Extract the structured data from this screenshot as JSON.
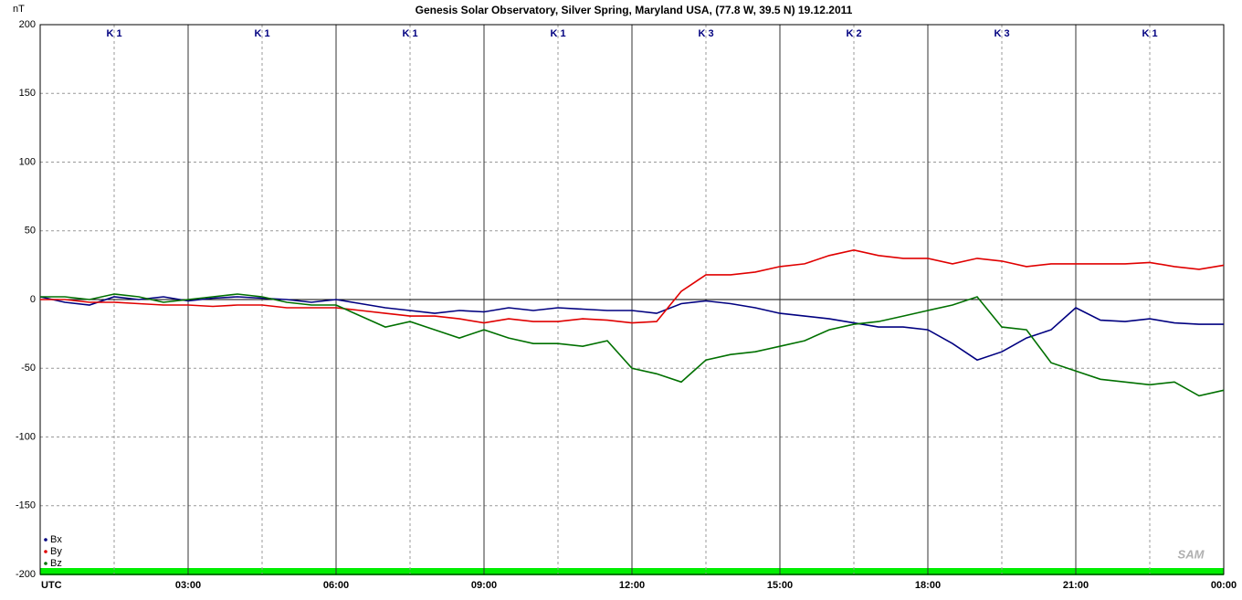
{
  "chart_data": {
    "type": "line",
    "title": "Genesis Solar Observatory, Silver Spring, Maryland USA, (77.8 W, 39.5 N)  19.12.2011",
    "y_label": "nT",
    "logo": "SAM",
    "k_labels": [
      "K 1",
      "K 1",
      "K 1",
      "K 1",
      "K 3",
      "K 2",
      "K 3",
      "K 1"
    ],
    "x": [
      0,
      0.5,
      1,
      1.5,
      2,
      2.5,
      3,
      3.5,
      4,
      4.5,
      5,
      5.5,
      6,
      6.5,
      7,
      7.5,
      8,
      8.5,
      9,
      9.5,
      10,
      10.5,
      11,
      11.5,
      12,
      12.5,
      13,
      13.5,
      14,
      14.5,
      15,
      15.5,
      16,
      16.5,
      17,
      17.5,
      18,
      18.5,
      19,
      19.5,
      20,
      20.5,
      21,
      21.5,
      22,
      22.5,
      23,
      23.5,
      24
    ],
    "series": [
      {
        "name": "Bx",
        "color": "#000080",
        "values": [
          2,
          -2,
          -4,
          2,
          0,
          2,
          -1,
          1,
          2,
          1,
          0,
          -2,
          0,
          -3,
          -6,
          -8,
          -10,
          -8,
          -9,
          -6,
          -8,
          -6,
          -7,
          -8,
          -8,
          -10,
          -3,
          -1,
          -3,
          -6,
          -10,
          -12,
          -14,
          -17,
          -20,
          -20,
          -22,
          -32,
          -44,
          -38,
          -28,
          -22,
          -6,
          -15,
          -16,
          -14,
          -17,
          -18,
          -18
        ]
      },
      {
        "name": "By",
        "color": "#e00000",
        "values": [
          0,
          0,
          -2,
          -2,
          -3,
          -4,
          -4,
          -5,
          -4,
          -4,
          -6,
          -6,
          -6,
          -8,
          -10,
          -12,
          -12,
          -14,
          -17,
          -14,
          -16,
          -16,
          -14,
          -15,
          -17,
          -16,
          6,
          18,
          18,
          20,
          24,
          26,
          32,
          36,
          32,
          30,
          30,
          26,
          30,
          28,
          24,
          26,
          26,
          26,
          26,
          27,
          24,
          22,
          25
        ]
      },
      {
        "name": "Bz",
        "color": "#007000",
        "values": [
          2,
          2,
          0,
          4,
          2,
          -2,
          0,
          2,
          4,
          2,
          -2,
          -4,
          -4,
          -12,
          -20,
          -16,
          -22,
          -28,
          -22,
          -28,
          -32,
          -32,
          -34,
          -30,
          -50,
          -54,
          -60,
          -44,
          -40,
          -38,
          -34,
          -30,
          -22,
          -18,
          -16,
          -12,
          -8,
          -4,
          2,
          -20,
          -22,
          -46,
          -52,
          -58,
          -60,
          -62,
          -60,
          -70,
          -66
        ]
      }
    ],
    "xlim": [
      0,
      24
    ],
    "xticks": [
      {
        "value": 0,
        "label": "UTC"
      },
      {
        "value": 3,
        "label": "03:00"
      },
      {
        "value": 6,
        "label": "06:00"
      },
      {
        "value": 9,
        "label": "09:00"
      },
      {
        "value": 12,
        "label": "12:00"
      },
      {
        "value": 15,
        "label": "15:00"
      },
      {
        "value": 18,
        "label": "18:00"
      },
      {
        "value": 21,
        "label": "21:00"
      },
      {
        "value": 24,
        "label": "00:00"
      }
    ],
    "ylim": [
      -200,
      200
    ],
    "yticks": [
      -200,
      -150,
      -100,
      -50,
      0,
      50,
      100,
      150,
      200
    ],
    "grid": true
  }
}
